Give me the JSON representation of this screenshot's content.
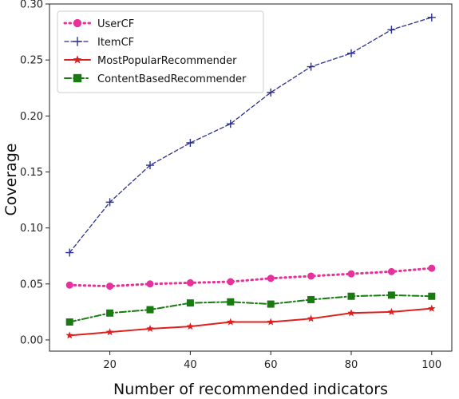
{
  "chart_data": {
    "type": "line",
    "title": "",
    "xlabel": "Number of recommended indicators",
    "ylabel": "Coverage",
    "xlim": [
      5,
      105
    ],
    "ylim": [
      -0.01,
      0.3
    ],
    "xticks": [
      20,
      40,
      60,
      80,
      100
    ],
    "yticks": [
      0.0,
      0.05,
      0.1,
      0.15,
      0.2,
      0.25,
      0.3
    ],
    "ytick_labels": [
      "0.00",
      "0.05",
      "0.10",
      "0.15",
      "0.20",
      "0.25",
      "0.30"
    ],
    "grid": false,
    "legend": "top-left",
    "x": [
      10,
      20,
      30,
      40,
      50,
      60,
      70,
      80,
      90,
      100
    ],
    "series": [
      {
        "name": "UserCF",
        "values": [
          0.049,
          0.048,
          0.05,
          0.051,
          0.052,
          0.055,
          0.057,
          0.059,
          0.061,
          0.064
        ],
        "color": "#e8309c",
        "dash": "dotted",
        "marker": "circle"
      },
      {
        "name": "ItemCF",
        "values": [
          0.078,
          0.123,
          0.156,
          0.176,
          0.193,
          0.221,
          0.244,
          0.256,
          0.277,
          0.288
        ],
        "color": "#2b2f8f",
        "dash": "dashed",
        "marker": "plus"
      },
      {
        "name": "MostPopularRecommender",
        "values": [
          0.004,
          0.007,
          0.01,
          0.012,
          0.016,
          0.016,
          0.019,
          0.024,
          0.025,
          0.028
        ],
        "color": "#e01e1e",
        "dash": "solid",
        "marker": "star"
      },
      {
        "name": "ContentBasedRecommender",
        "values": [
          0.016,
          0.024,
          0.027,
          0.033,
          0.034,
          0.032,
          0.036,
          0.039,
          0.04,
          0.039
        ],
        "color": "#1a7a12",
        "dash": "dashdot",
        "marker": "square"
      }
    ]
  }
}
